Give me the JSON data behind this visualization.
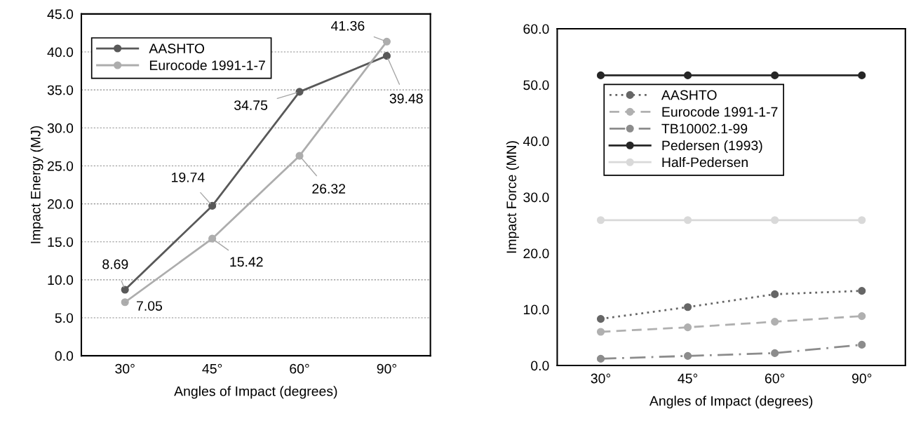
{
  "chart_data": [
    {
      "type": "line",
      "xlabel": "Angles of Impact (degrees)",
      "ylabel": "Impact Energy (MJ)",
      "categories": [
        "30°",
        "45°",
        "60°",
        "90°"
      ],
      "ylim": [
        0,
        45
      ],
      "yticks": [
        {
          "value": 0,
          "label": "0.0"
        },
        {
          "value": 5,
          "label": "5.0"
        },
        {
          "value": 10,
          "label": "10.0"
        },
        {
          "value": 15,
          "label": "15.0"
        },
        {
          "value": 20,
          "label": "20.0"
        },
        {
          "value": 25,
          "label": "25.0"
        },
        {
          "value": 30,
          "label": "30.0"
        },
        {
          "value": 35,
          "label": "35.0"
        },
        {
          "value": 40,
          "label": "40.0"
        },
        {
          "value": 45,
          "label": "45.0"
        }
      ],
      "grid": "y",
      "legend": "top left",
      "marker": "circle",
      "line_style": "solid",
      "data_labels": true,
      "series": [
        {
          "name": "AASHTO",
          "color": "#595959",
          "values": [
            8.69,
            19.74,
            34.75,
            39.48
          ]
        },
        {
          "name": "Eurocode 1991-1-7",
          "color": "#adadad",
          "values": [
            7.05,
            15.42,
            26.32,
            41.36
          ]
        }
      ]
    },
    {
      "type": "line",
      "xlabel": "Angles of Impact (degrees)",
      "ylabel": "Impact Force (MN)",
      "categories": [
        "30°",
        "45°",
        "60°",
        "90°"
      ],
      "ylim": [
        0,
        60
      ],
      "yticks": [
        {
          "value": 0,
          "label": "0.0"
        },
        {
          "value": 10,
          "label": "10.0"
        },
        {
          "value": 20,
          "label": "20.0"
        },
        {
          "value": 30,
          "label": "30.0"
        },
        {
          "value": 40,
          "label": "40.0"
        },
        {
          "value": 50,
          "label": "50.0"
        },
        {
          "value": 60,
          "label": "60.0"
        }
      ],
      "grid": false,
      "legend": "top",
      "marker": "circle",
      "series": [
        {
          "name": "AASHTO",
          "color": "#666666",
          "line_style": "dotted",
          "values": [
            8.3,
            10.4,
            12.7,
            13.3
          ]
        },
        {
          "name": "Eurocode 1991-1-7",
          "color": "#b0b0b0",
          "line_style": "dashed",
          "values": [
            6.0,
            6.8,
            7.8,
            8.8
          ]
        },
        {
          "name": "TB10002.1-99",
          "color": "#8c8c8c",
          "line_style": "dashdot",
          "values": [
            1.2,
            1.7,
            2.2,
            3.7
          ]
        },
        {
          "name": "Pedersen (1993)",
          "color": "#262626",
          "line_style": "solid",
          "values": [
            51.7,
            51.7,
            51.7,
            51.7
          ]
        },
        {
          "name": "Half-Pedersen",
          "color": "#d9d9d9",
          "line_style": "solid",
          "values": [
            25.9,
            25.9,
            25.9,
            25.9
          ]
        }
      ]
    }
  ]
}
